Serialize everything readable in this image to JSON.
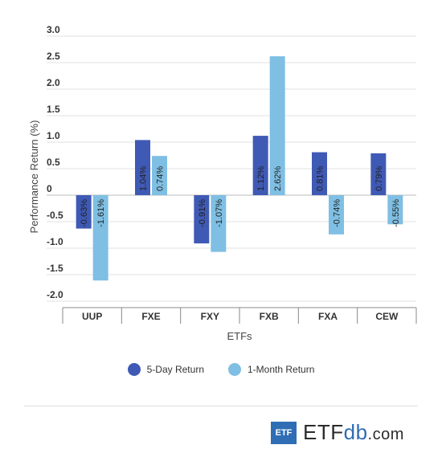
{
  "chart_data": {
    "type": "bar",
    "categories": [
      "UUP",
      "FXE",
      "FXY",
      "FXB",
      "FXA",
      "CEW"
    ],
    "series": [
      {
        "name": "5-Day Return",
        "values": [
          -0.63,
          1.04,
          -0.91,
          1.12,
          0.81,
          0.79
        ],
        "labels": [
          "-0.63%",
          "1.04%",
          "-0.91%",
          "1.12%",
          "0.81%",
          "0.79%"
        ],
        "color": "#3f5ab5"
      },
      {
        "name": "1-Month Return",
        "values": [
          -1.61,
          0.74,
          -1.07,
          2.62,
          -0.74,
          -0.55
        ],
        "labels": [
          "-1.61%",
          "0.74%",
          "-1.07%",
          "2.62%",
          "-0.74%",
          "-0.55%"
        ],
        "color": "#7fbfe3"
      }
    ],
    "ylim": [
      -2.0,
      3.0
    ],
    "yticks": [
      3.0,
      2.5,
      2.0,
      1.5,
      1.0,
      0.5,
      0,
      -0.5,
      -1.0,
      -1.5,
      -2.0
    ],
    "ytick_labels": [
      "3.0",
      "2.5",
      "2.0",
      "1.5",
      "1.0",
      "0.5",
      "0",
      "-0.5",
      "-1.0",
      "-1.5",
      "-2.0"
    ],
    "xlabel": "ETFs",
    "ylabel": "Performance Return (%)",
    "grid": true,
    "legend_position": "bottom"
  },
  "logo": {
    "badge": "ETF",
    "name_main": "ETF",
    "name_accent": "db",
    "name_suffix": ".com"
  }
}
